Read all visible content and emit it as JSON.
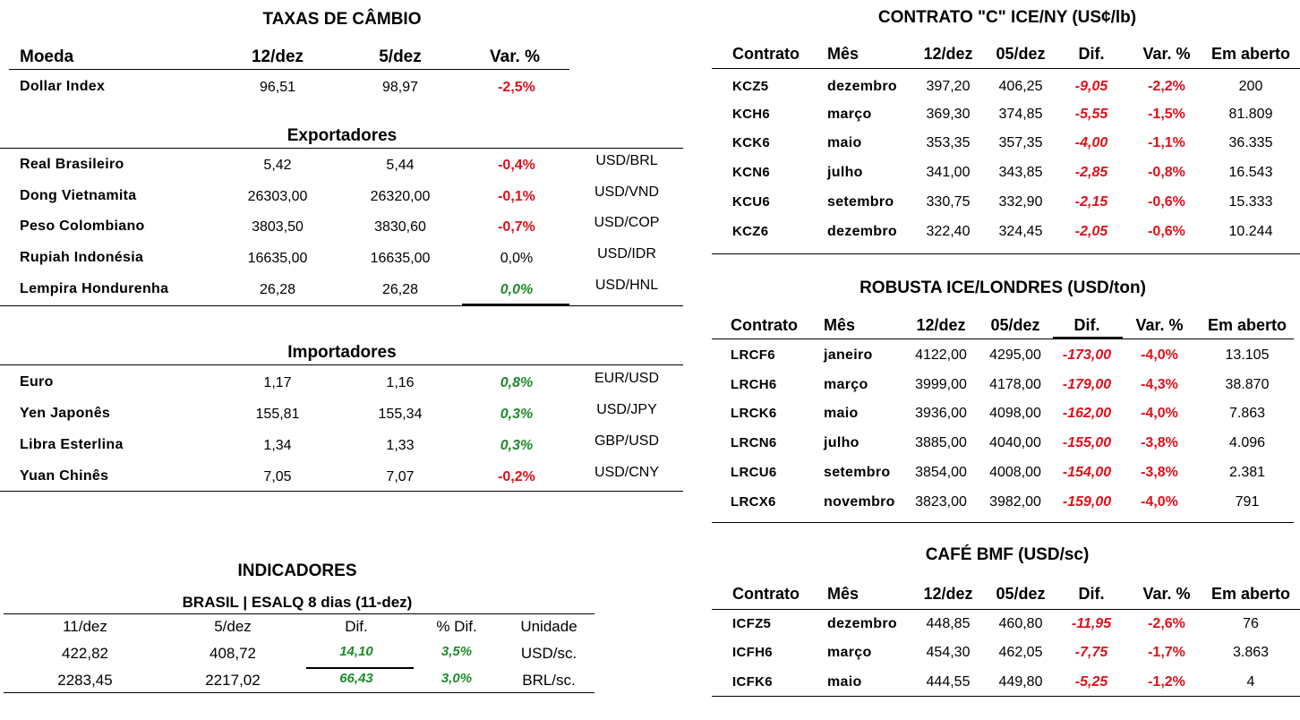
{
  "fx": {
    "title": "TAXAS DE CÂMBIO",
    "headers": {
      "moeda": "Moeda",
      "d1": "12/dez",
      "d2": "5/dez",
      "var": "Var. %"
    },
    "dollar_index": {
      "name": "Dollar Index",
      "v1": "96,51",
      "v2": "98,97",
      "var": "-2,5%"
    },
    "exporters_title": "Exportadores",
    "exporters": [
      {
        "name": "Real Brasileiro",
        "v1": "5,42",
        "v2": "5,44",
        "var": "-0,4%",
        "pair": "USD/BRL"
      },
      {
        "name": "Dong Vietnamita",
        "v1": "26303,00",
        "v2": "26320,00",
        "var": "-0,1%",
        "pair": "USD/VND"
      },
      {
        "name": "Peso Colombiano",
        "v1": "3803,50",
        "v2": "3830,60",
        "var": "-0,7%",
        "pair": "USD/COP"
      },
      {
        "name": "Rupiah Indonésia",
        "v1": "16635,00",
        "v2": "16635,00",
        "var": "0,0%",
        "pair": "USD/IDR"
      },
      {
        "name": "Lempira Hondurenha",
        "v1": "26,28",
        "v2": "26,28",
        "var": "0,0%",
        "pair": "USD/HNL"
      }
    ],
    "importers_title": "Importadores",
    "importers": [
      {
        "name": "Euro",
        "v1": "1,17",
        "v2": "1,16",
        "var": "0,8%",
        "pair": "EUR/USD"
      },
      {
        "name": "Yen Japonês",
        "v1": "155,81",
        "v2": "155,34",
        "var": "0,3%",
        "pair": "USD/JPY"
      },
      {
        "name": "Libra Esterlina",
        "v1": "1,34",
        "v2": "1,33",
        "var": "0,3%",
        "pair": "GBP/USD"
      },
      {
        "name": "Yuan Chinês",
        "v1": "7,05",
        "v2": "7,07",
        "var": "-0,2%",
        "pair": "USD/CNY"
      }
    ]
  },
  "indicators": {
    "title": "INDICADORES",
    "subtitle": "BRASIL | ESALQ 8 dias (11-dez)",
    "headers": [
      "11/dez",
      "5/dez",
      "Dif.",
      "% Dif.",
      "Unidade"
    ],
    "rows": [
      [
        "422,82",
        "408,72",
        "14,10",
        "3,5%",
        "USD/sc."
      ],
      [
        "2283,45",
        "2217,02",
        "66,43",
        "3,0%",
        "BRL/sc."
      ]
    ]
  },
  "ny": {
    "title": "CONTRATO \"C\" ICE/NY (US¢/lb)",
    "headers": [
      "Contrato",
      "Mês",
      "12/dez",
      "05/dez",
      "Dif.",
      "Var. %",
      "Em aberto"
    ],
    "rows": [
      [
        "KCZ5",
        "dezembro",
        "397,20",
        "406,25",
        "-9,05",
        "-2,2%",
        "200"
      ],
      [
        "KCH6",
        "março",
        "369,30",
        "374,85",
        "-5,55",
        "-1,5%",
        "81.809"
      ],
      [
        "KCK6",
        "maio",
        "353,35",
        "357,35",
        "-4,00",
        "-1,1%",
        "36.335"
      ],
      [
        "KCN6",
        "julho",
        "341,00",
        "343,85",
        "-2,85",
        "-0,8%",
        "16.543"
      ],
      [
        "KCU6",
        "setembro",
        "330,75",
        "332,90",
        "-2,15",
        "-0,6%",
        "15.333"
      ],
      [
        "KCZ6",
        "dezembro",
        "322,40",
        "324,45",
        "-2,05",
        "-0,6%",
        "10.244"
      ]
    ]
  },
  "london": {
    "title": "ROBUSTA ICE/LONDRES (USD/ton)",
    "headers": [
      "Contrato",
      "Mês",
      "12/dez",
      "05/dez",
      "Dif.",
      "Var. %",
      "Em aberto"
    ],
    "rows": [
      [
        "LRCF6",
        "janeiro",
        "4122,00",
        "4295,00",
        "-173,00",
        "-4,0%",
        "13.105"
      ],
      [
        "LRCH6",
        "março",
        "3999,00",
        "4178,00",
        "-179,00",
        "-4,3%",
        "38.870"
      ],
      [
        "LRCK6",
        "maio",
        "3936,00",
        "4098,00",
        "-162,00",
        "-4,0%",
        "7.863"
      ],
      [
        "LRCN6",
        "julho",
        "3885,00",
        "4040,00",
        "-155,00",
        "-3,8%",
        "4.096"
      ],
      [
        "LRCU6",
        "setembro",
        "3854,00",
        "4008,00",
        "-154,00",
        "-3,8%",
        "2.381"
      ],
      [
        "LRCX6",
        "novembro",
        "3823,00",
        "3982,00",
        "-159,00",
        "-4,0%",
        "791"
      ]
    ]
  },
  "bmf": {
    "title": "CAFÉ BMF (USD/sc)",
    "headers": [
      "Contrato",
      "Mês",
      "12/dez",
      "05/dez",
      "Dif.",
      "Var. %",
      "Em aberto"
    ],
    "rows": [
      [
        "ICFZ5",
        "dezembro",
        "448,85",
        "460,80",
        "-11,95",
        "-2,6%",
        "76"
      ],
      [
        "ICFH6",
        "março",
        "454,30",
        "462,05",
        "-7,75",
        "-1,7%",
        "3.863"
      ],
      [
        "ICFK6",
        "maio",
        "444,55",
        "449,80",
        "-5,25",
        "-1,2%",
        "4"
      ]
    ]
  },
  "colors": {
    "negative": "#e0101a",
    "positive": "#1e8a2a"
  }
}
